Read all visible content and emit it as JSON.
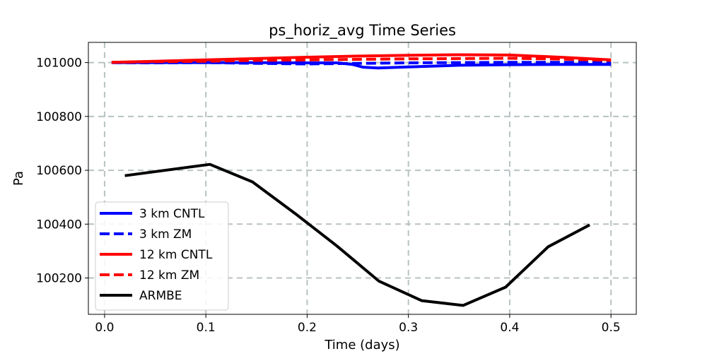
{
  "chart_data": {
    "type": "line",
    "title": "ps_horiz_avg Time Series",
    "xlabel": "Time (days)",
    "ylabel": "Pa",
    "xlim": [
      -0.016,
      0.525
    ],
    "ylim": [
      100065,
      101075
    ],
    "xticks": [
      0.0,
      0.1,
      0.2,
      0.3,
      0.4,
      0.5
    ],
    "xtick_labels": [
      "0.0",
      "0.1",
      "0.2",
      "0.3",
      "0.4",
      "0.5"
    ],
    "yticks": [
      100200,
      100400,
      100600,
      100800,
      101000
    ],
    "ytick_labels": [
      "100200",
      "100400",
      "100600",
      "100800",
      "101000"
    ],
    "grid": true,
    "legend_position": "lower-left",
    "series": [
      {
        "name": "3 km CNTL",
        "color": "#0000ff",
        "dash": "solid",
        "x": [
          0.007,
          0.05,
          0.1,
          0.15,
          0.2,
          0.23,
          0.245,
          0.255,
          0.27,
          0.3,
          0.35,
          0.4,
          0.45,
          0.5
        ],
        "y": [
          101000,
          101000,
          101000,
          101000,
          100999,
          100999,
          100993,
          100983,
          100980,
          100984,
          100990,
          100992,
          100993,
          100993
        ]
      },
      {
        "name": "3 km ZM",
        "color": "#0000ff",
        "dash": "dashed",
        "x": [
          0.007,
          0.05,
          0.1,
          0.15,
          0.2,
          0.25,
          0.3,
          0.35,
          0.4,
          0.45,
          0.5
        ],
        "y": [
          101000,
          100999,
          101000,
          100997,
          100995,
          100997,
          100999,
          101000,
          101001,
          101001,
          101001
        ]
      },
      {
        "name": "12 km CNTL",
        "color": "#ff0000",
        "dash": "solid",
        "x": [
          0.007,
          0.05,
          0.1,
          0.15,
          0.2,
          0.25,
          0.3,
          0.35,
          0.4,
          0.45,
          0.5
        ],
        "y": [
          101001,
          101005,
          101010,
          101015,
          101020,
          101024,
          101027,
          101029,
          101028,
          101020,
          101010
        ]
      },
      {
        "name": "12 km ZM",
        "color": "#ff0000",
        "dash": "dashed",
        "x": [
          0.007,
          0.05,
          0.1,
          0.15,
          0.2,
          0.25,
          0.3,
          0.35,
          0.4,
          0.45,
          0.5
        ],
        "y": [
          101001,
          101003,
          101005,
          101008,
          101010,
          101012,
          101014,
          101015,
          101016,
          101013,
          101008
        ]
      },
      {
        "name": "ARMBE",
        "color": "#000000",
        "dash": "solid",
        "x": [
          0.02,
          0.104,
          0.146,
          0.188,
          0.229,
          0.271,
          0.313,
          0.354,
          0.396,
          0.438,
          0.479
        ],
        "y": [
          100580,
          100622,
          100557,
          100440,
          100320,
          100188,
          100116,
          100098,
          100166,
          100316,
          100397
        ]
      }
    ]
  }
}
